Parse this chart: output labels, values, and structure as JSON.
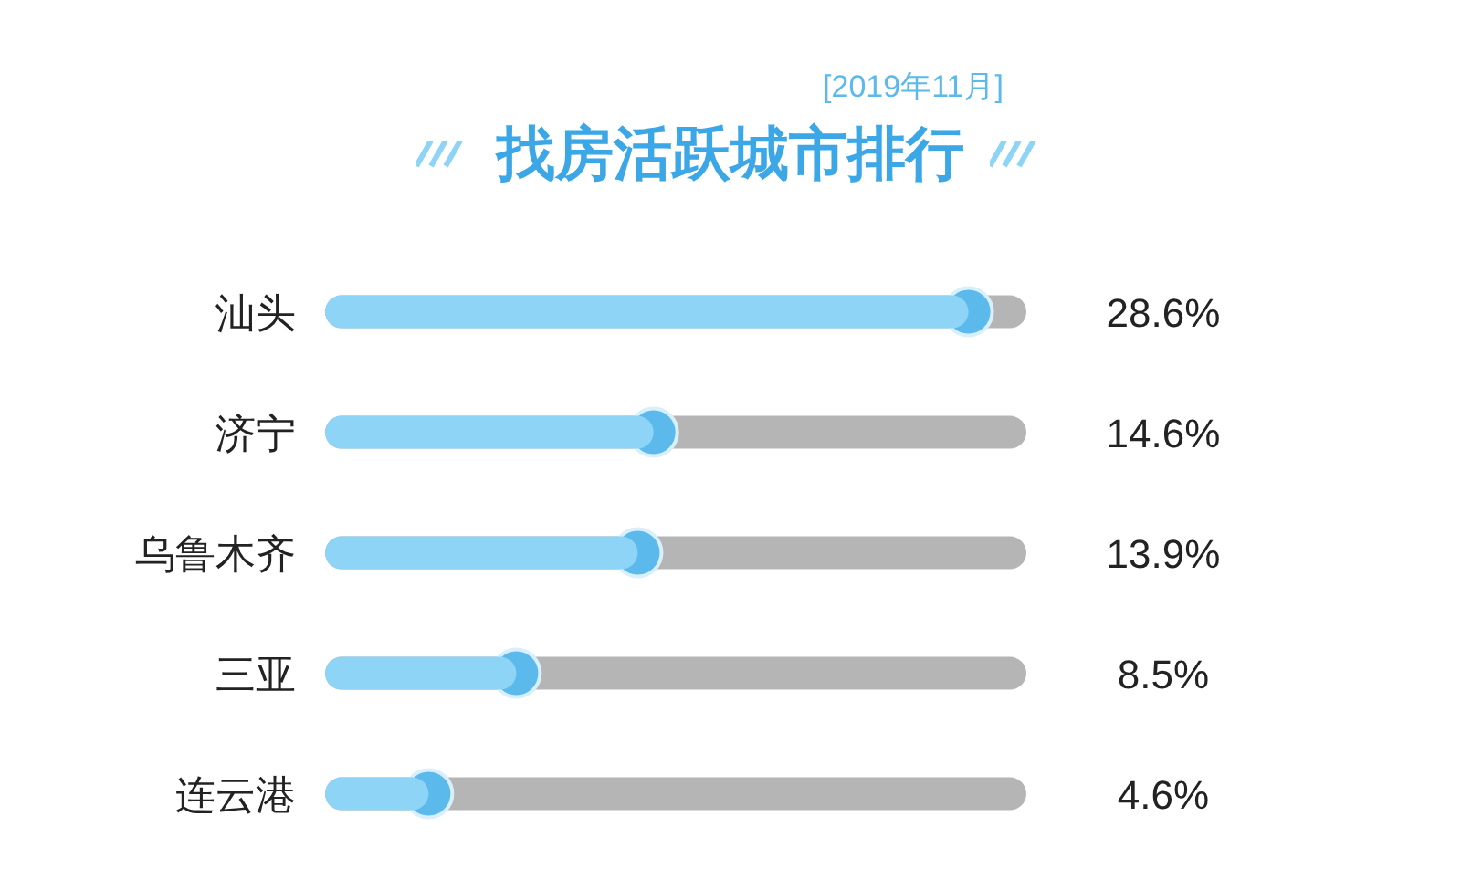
{
  "chart_data": {
    "type": "bar",
    "orientation": "horizontal",
    "title": "找房活跃城市排行",
    "subtitle": "[2019年11月]",
    "categories": [
      "汕头",
      "济宁",
      "乌鲁木齐",
      "三亚",
      "连云港"
    ],
    "values": [
      28.6,
      14.6,
      13.9,
      8.5,
      4.6
    ],
    "value_labels": [
      "28.6%",
      "14.6%",
      "13.9%",
      "8.5%",
      "4.6%"
    ],
    "color": "#8ed4f6"
  }
}
